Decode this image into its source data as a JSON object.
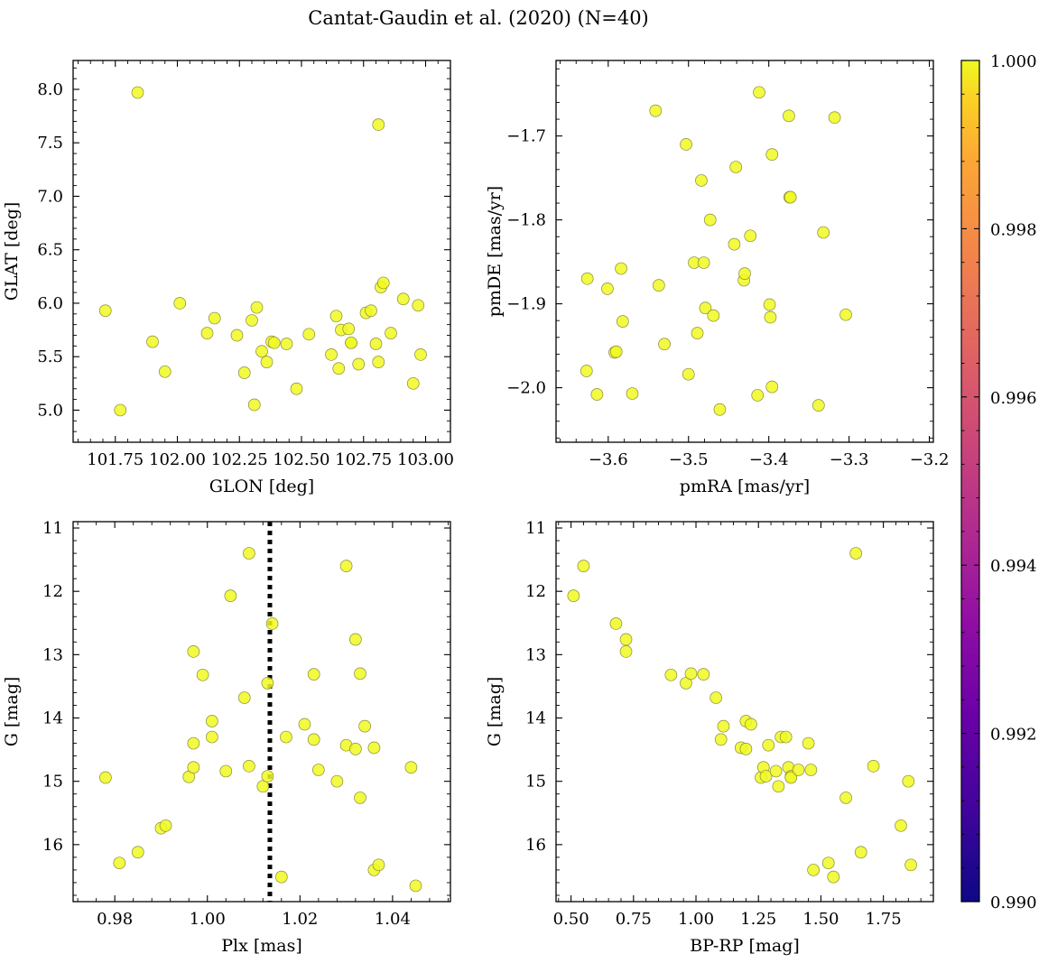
{
  "figure": {
    "title": "Cantat-Gaudin et al. (2020) (N=40)"
  },
  "colorbar": {
    "cmap": "plasma",
    "vmin": 0.99,
    "vmax": 1.0,
    "tick_labels": [
      "0.990",
      "0.992",
      "0.994",
      "0.996",
      "0.998",
      "1.000"
    ],
    "tick_values": [
      0.99,
      0.992,
      0.994,
      0.996,
      0.998,
      1.0
    ]
  },
  "marker_color": "#f0f921",
  "chart_data": [
    {
      "type": "scatter",
      "xlabel": "GLON [deg]",
      "ylabel": "GLAT [deg]",
      "xlim": [
        101.58,
        103.1
      ],
      "ylim": [
        4.7,
        8.27
      ],
      "xticks": [
        101.75,
        102.0,
        102.25,
        102.5,
        102.75,
        103.0
      ],
      "xtick_labels": [
        "101.75",
        "102.00",
        "102.25",
        "102.50",
        "102.75",
        "103.00"
      ],
      "yticks": [
        5.0,
        5.5,
        6.0,
        6.5,
        7.0,
        7.5,
        8.0
      ],
      "ytick_labels": [
        "5.0",
        "5.5",
        "6.0",
        "6.5",
        "7.0",
        "7.5",
        "8.0"
      ],
      "y_inverted": false,
      "x": [
        101.71,
        101.84,
        101.77,
        101.9,
        101.95,
        102.01,
        102.12,
        102.15,
        102.24,
        102.27,
        102.3,
        102.31,
        102.32,
        102.34,
        102.36,
        102.38,
        102.39,
        102.44,
        102.48,
        102.53,
        102.62,
        102.64,
        102.65,
        102.66,
        102.69,
        102.7,
        102.7,
        102.73,
        102.76,
        102.78,
        102.8,
        102.81,
        102.81,
        102.82,
        102.83,
        102.86,
        102.91,
        102.95,
        102.97,
        102.98
      ],
      "y": [
        5.93,
        7.97,
        5.0,
        5.64,
        5.36,
        6.0,
        5.72,
        5.86,
        5.7,
        5.35,
        5.84,
        5.05,
        5.96,
        5.55,
        5.45,
        5.64,
        5.63,
        5.62,
        5.2,
        5.71,
        5.52,
        5.88,
        5.39,
        5.75,
        5.76,
        5.63,
        5.63,
        5.43,
        5.91,
        5.93,
        5.62,
        7.67,
        5.45,
        6.15,
        6.19,
        5.72,
        6.04,
        5.25,
        5.98,
        5.52
      ]
    },
    {
      "type": "scatter",
      "xlabel": "pmRA [mas/yr]",
      "ylabel": "pmDE [mas/yr]",
      "xlim": [
        -3.665,
        -3.195
      ],
      "ylim": [
        -2.065,
        -1.61
      ],
      "xticks": [
        -3.6,
        -3.5,
        -3.4,
        -3.3,
        -3.2
      ],
      "xtick_labels": [
        "−3.6",
        "−3.5",
        "−3.4",
        "−3.3",
        "−3.2"
      ],
      "yticks": [
        -2.0,
        -1.9,
        -1.8,
        -1.7
      ],
      "ytick_labels": [
        "−2.0",
        "−1.9",
        "−1.8",
        "−1.7"
      ],
      "y_inverted": false,
      "x": [
        -3.627,
        -3.626,
        -3.614,
        -3.601,
        -3.592,
        -3.59,
        -3.584,
        -3.582,
        -3.57,
        -3.541,
        -3.537,
        -3.53,
        -3.503,
        -3.5,
        -3.493,
        -3.489,
        -3.484,
        -3.481,
        -3.479,
        -3.473,
        -3.469,
        -3.461,
        -3.443,
        -3.441,
        -3.431,
        -3.43,
        -3.423,
        -3.414,
        -3.412,
        -3.399,
        -3.398,
        -3.396,
        -3.396,
        -3.375,
        -3.374,
        -3.373,
        -3.338,
        -3.332,
        -3.318,
        -3.304
      ],
      "y": [
        -1.98,
        -1.87,
        -2.008,
        -1.882,
        -1.958,
        -1.957,
        -1.858,
        -1.921,
        -2.007,
        -1.67,
        -1.878,
        -1.948,
        -1.71,
        -1.984,
        -1.851,
        -1.935,
        -1.753,
        -1.851,
        -1.905,
        -1.8,
        -1.914,
        -2.026,
        -1.829,
        -1.737,
        -1.872,
        -1.864,
        -1.819,
        -2.009,
        -1.648,
        -1.901,
        -1.916,
        -1.999,
        -1.722,
        -1.676,
        -1.773,
        -1.773,
        -2.021,
        -1.815,
        -1.678,
        -1.913
      ]
    },
    {
      "type": "scatter",
      "xlabel": "Plx [mas]",
      "ylabel": "G [mag]",
      "xlim": [
        0.971,
        1.0525
      ],
      "ylim": [
        16.9,
        10.9
      ],
      "xticks": [
        0.98,
        1.0,
        1.02,
        1.04
      ],
      "xtick_labels": [
        "0.98",
        "1.00",
        "1.02",
        "1.04"
      ],
      "yticks": [
        11,
        12,
        13,
        14,
        15,
        16
      ],
      "ytick_labels": [
        "11",
        "12",
        "13",
        "14",
        "15",
        "16"
      ],
      "y_inverted": true,
      "reference_line": {
        "x": 1.0135,
        "style": "dotted"
      },
      "x": [
        0.978,
        0.981,
        0.985,
        0.99,
        0.991,
        0.996,
        0.997,
        0.997,
        0.997,
        0.999,
        1.001,
        1.001,
        1.004,
        1.005,
        1.008,
        1.009,
        1.009,
        1.012,
        1.013,
        1.013,
        1.014,
        1.016,
        1.017,
        1.021,
        1.023,
        1.023,
        1.024,
        1.028,
        1.03,
        1.03,
        1.032,
        1.032,
        1.033,
        1.033,
        1.034,
        1.036,
        1.036,
        1.037,
        1.044,
        1.045
      ],
      "y": [
        14.94,
        16.29,
        16.12,
        15.74,
        15.7,
        14.93,
        14.4,
        14.78,
        12.95,
        13.32,
        14.05,
        14.3,
        14.84,
        12.07,
        13.68,
        11.4,
        14.76,
        15.08,
        13.45,
        14.92,
        12.51,
        16.51,
        14.3,
        14.1,
        13.31,
        14.34,
        14.82,
        15.0,
        14.43,
        11.6,
        14.49,
        12.76,
        15.26,
        13.3,
        14.13,
        14.47,
        16.4,
        16.32,
        14.78,
        16.65
      ]
    },
    {
      "type": "scatter",
      "xlabel": "BP-RP [mag]",
      "ylabel": "G [mag]",
      "xlim": [
        0.44,
        1.95
      ],
      "ylim": [
        16.9,
        10.9
      ],
      "xticks": [
        0.5,
        0.75,
        1.0,
        1.25,
        1.5,
        1.75
      ],
      "xtick_labels": [
        "0.50",
        "0.75",
        "1.00",
        "1.25",
        "1.50",
        "1.75"
      ],
      "yticks": [
        11,
        12,
        13,
        14,
        15,
        16
      ],
      "ytick_labels": [
        "11",
        "12",
        "13",
        "14",
        "15",
        "16"
      ],
      "y_inverted": true,
      "x": [
        0.51,
        0.55,
        0.68,
        0.72,
        0.72,
        0.9,
        0.96,
        0.98,
        1.03,
        1.08,
        1.1,
        1.11,
        1.18,
        1.2,
        1.2,
        1.22,
        1.26,
        1.27,
        1.28,
        1.29,
        1.32,
        1.33,
        1.34,
        1.36,
        1.37,
        1.38,
        1.38,
        1.41,
        1.45,
        1.46,
        1.47,
        1.53,
        1.55,
        1.6,
        1.64,
        1.66,
        1.71,
        1.82,
        1.85,
        1.86
      ],
      "y": [
        12.07,
        11.6,
        12.51,
        12.76,
        12.95,
        13.32,
        13.45,
        13.3,
        13.31,
        13.68,
        14.34,
        14.13,
        14.47,
        14.05,
        14.49,
        14.1,
        14.94,
        14.78,
        14.92,
        14.43,
        14.84,
        15.08,
        14.3,
        14.3,
        14.78,
        14.92,
        14.94,
        14.82,
        14.4,
        14.82,
        16.4,
        16.29,
        16.51,
        15.26,
        11.4,
        16.12,
        14.76,
        15.7,
        15.0,
        16.32
      ]
    }
  ]
}
